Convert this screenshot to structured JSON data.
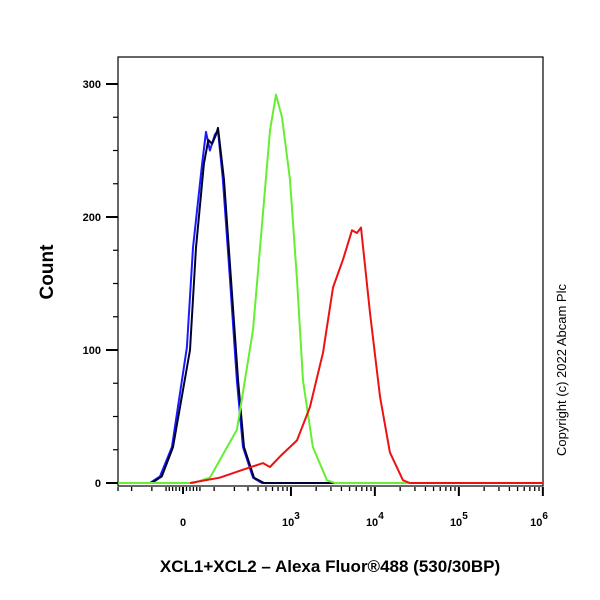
{
  "chart_data": {
    "type": "line",
    "title": "",
    "xlabel": "XCL1+XCL2 – Alexa Fluor®488 (530/30BP)",
    "ylabel": "Count",
    "x_scale": "biexponential",
    "xlim": [
      -300,
      1000000
    ],
    "ylim": [
      0,
      320
    ],
    "x_ticks": [
      {
        "value": 0,
        "base": "0",
        "exp": ""
      },
      {
        "value": 1000,
        "base": "10",
        "exp": "3"
      },
      {
        "value": 10000,
        "base": "10",
        "exp": "4"
      },
      {
        "value": 100000,
        "base": "10",
        "exp": "5"
      },
      {
        "value": 1000000,
        "base": "10",
        "exp": "6"
      }
    ],
    "y_ticks": [
      0,
      100,
      200,
      300
    ],
    "y_tick_labels": [
      "0",
      "100",
      "200",
      "300"
    ],
    "grid": false,
    "legend": "none",
    "copyright": "Copyright (c) 2022 Abcam Plc",
    "series": [
      {
        "color": "#1a1aff",
        "points": [
          [
            -108,
            0
          ],
          [
            -70,
            5
          ],
          [
            -32,
            27
          ],
          [
            11,
            102
          ],
          [
            29,
            177
          ],
          [
            57,
            240
          ],
          [
            70,
            264
          ],
          [
            84,
            250
          ],
          [
            103,
            262
          ],
          [
            116,
            265
          ],
          [
            138,
            228
          ],
          [
            174,
            153
          ],
          [
            216,
            77
          ],
          [
            259,
            27
          ],
          [
            347,
            4
          ],
          [
            447,
            0
          ],
          [
            1000000,
            0
          ]
        ]
      },
      {
        "color": "#000033",
        "points": [
          [
            -101,
            0
          ],
          [
            -64,
            5
          ],
          [
            -29,
            27
          ],
          [
            20,
            100
          ],
          [
            38,
            177
          ],
          [
            63,
            240
          ],
          [
            78,
            258
          ],
          [
            92,
            255
          ],
          [
            108,
            262
          ],
          [
            116,
            267
          ],
          [
            143,
            228
          ],
          [
            180,
            153
          ],
          [
            224,
            77
          ],
          [
            267,
            27
          ],
          [
            357,
            4
          ],
          [
            473,
            0
          ],
          [
            1000000,
            0
          ]
        ]
      },
      {
        "color": "#66ee33",
        "points": [
          [
            -300,
            0
          ],
          [
            30,
            0
          ],
          [
            84,
            4
          ],
          [
            216,
            40
          ],
          [
            347,
            115
          ],
          [
            460,
            203
          ],
          [
            560,
            265
          ],
          [
            661,
            292
          ],
          [
            782,
            275
          ],
          [
            975,
            228
          ],
          [
            1181,
            153
          ],
          [
            1394,
            77
          ],
          [
            1830,
            27
          ],
          [
            2690,
            2
          ],
          [
            3360,
            0
          ],
          [
            1000000,
            0
          ]
        ]
      },
      {
        "color": "#ee1111",
        "points": [
          [
            20,
            0
          ],
          [
            123,
            4
          ],
          [
            259,
            10
          ],
          [
            460,
            15
          ],
          [
            560,
            12
          ],
          [
            740,
            20
          ],
          [
            1181,
            32
          ],
          [
            1685,
            57
          ],
          [
            2415,
            98
          ],
          [
            3170,
            147
          ],
          [
            4180,
            168
          ],
          [
            5350,
            190
          ],
          [
            6120,
            188
          ],
          [
            6840,
            192
          ],
          [
            8760,
            128
          ],
          [
            11500,
            65
          ],
          [
            15100,
            23
          ],
          [
            21600,
            2
          ],
          [
            26100,
            0
          ],
          [
            1000000,
            0
          ]
        ]
      }
    ]
  }
}
